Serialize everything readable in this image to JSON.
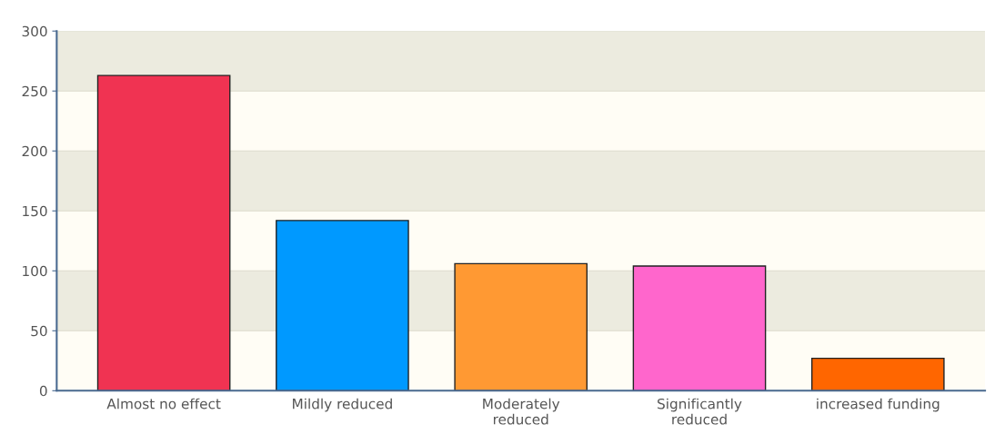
{
  "chart_data": {
    "type": "bar",
    "categories": [
      "Almost no effect",
      "Mildly reduced",
      "Moderately\nreduced",
      "Significantly\nreduced",
      "increased funding"
    ],
    "values": [
      263,
      142,
      106,
      104,
      27
    ],
    "colors": [
      "#f03352",
      "#0099ff",
      "#ff9933",
      "#ff66cc",
      "#ff6600"
    ],
    "ylim": [
      0,
      300
    ],
    "yticks": [
      0,
      50,
      100,
      150,
      200,
      250,
      300
    ],
    "grid": "y"
  }
}
